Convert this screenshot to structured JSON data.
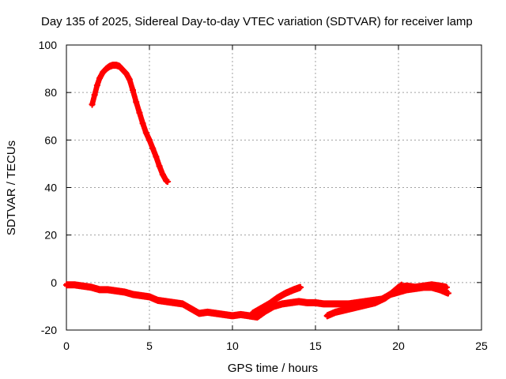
{
  "chart_data": {
    "type": "scatter",
    "title": "Day 135 of 2025, Sidereal Day-to-day VTEC variation (SDTVAR) for receiver lamp",
    "xlabel": "GPS time / hours",
    "ylabel": "SDTVAR / TECUs",
    "xlim": [
      0,
      25
    ],
    "ylim": [
      -20,
      100
    ],
    "xticks": [
      0,
      5,
      10,
      15,
      20,
      25
    ],
    "yticks": [
      -20,
      0,
      20,
      40,
      60,
      80,
      100
    ],
    "grid": true,
    "marker": "plus",
    "series": [
      {
        "name": "high-arc",
        "color": "#ff0000",
        "x": [
          1.55,
          1.7,
          1.85,
          2.0,
          2.2,
          2.4,
          2.6,
          2.8,
          3.0,
          3.2,
          3.4,
          3.6,
          3.8,
          4.0,
          4.2,
          4.4,
          4.6,
          4.8,
          5.0,
          5.2,
          5.4,
          5.6,
          5.8,
          6.0,
          6.1
        ],
        "y": [
          75,
          79,
          83,
          86,
          88.5,
          90,
          91,
          91.5,
          91.5,
          91,
          89.5,
          88,
          85.5,
          81,
          76,
          71.5,
          67,
          63,
          60,
          56.5,
          53,
          49,
          45.5,
          43,
          42.5
        ]
      },
      {
        "name": "main-track",
        "color": "#ff0000",
        "x": [
          0.0,
          0.5,
          1.0,
          1.5,
          2.0,
          2.5,
          3.0,
          3.5,
          4.0,
          4.5,
          5.0,
          5.5,
          6.0,
          6.5,
          7.0,
          7.5,
          8.0,
          8.5,
          9.0,
          9.5,
          10.0,
          10.5,
          11.0,
          11.5,
          12.0,
          12.5,
          13.0,
          13.5,
          14.0,
          14.5,
          15.0,
          15.5,
          16.0,
          16.5,
          17.0,
          17.5,
          18.0,
          18.5,
          19.0,
          19.5,
          20.0,
          20.5,
          21.0,
          21.5,
          22.0,
          22.5,
          22.9
        ],
        "y": [
          -1,
          -1,
          -1.5,
          -2,
          -3,
          -3,
          -3.5,
          -4,
          -5,
          -5.5,
          -6,
          -7.5,
          -8,
          -8.5,
          -9,
          -11,
          -13,
          -12.5,
          -13,
          -13.5,
          -14,
          -13.5,
          -14,
          -14.5,
          -12,
          -10,
          -9,
          -8.5,
          -8,
          -8.5,
          -8.5,
          -9,
          -9,
          -9,
          -9,
          -8.5,
          -8,
          -7.5,
          -7,
          -5,
          -2,
          -1.5,
          -2,
          -1.5,
          -1,
          -1.5,
          -2
        ]
      },
      {
        "name": "branch-a",
        "color": "#ff0000",
        "x": [
          11.2,
          11.7,
          12.2,
          12.7,
          13.2,
          13.7,
          14.1
        ],
        "y": [
          -13,
          -11,
          -9,
          -6.5,
          -4.5,
          -3,
          -2
        ]
      },
      {
        "name": "branch-b",
        "color": "#ff0000",
        "x": [
          15.7,
          16.2,
          16.8,
          17.4,
          18.0,
          18.6,
          19.2,
          19.8,
          20.2
        ],
        "y": [
          -14,
          -12.5,
          -11.5,
          -10.5,
          -9.5,
          -8.5,
          -6.5,
          -3.5,
          -1
        ]
      },
      {
        "name": "branch-c",
        "color": "#ff0000",
        "x": [
          19.5,
          20.0,
          20.5,
          21.0,
          21.5,
          22.0,
          22.5,
          23.0
        ],
        "y": [
          -5,
          -4,
          -3,
          -2.5,
          -2,
          -2,
          -3,
          -4.5
        ]
      }
    ]
  }
}
